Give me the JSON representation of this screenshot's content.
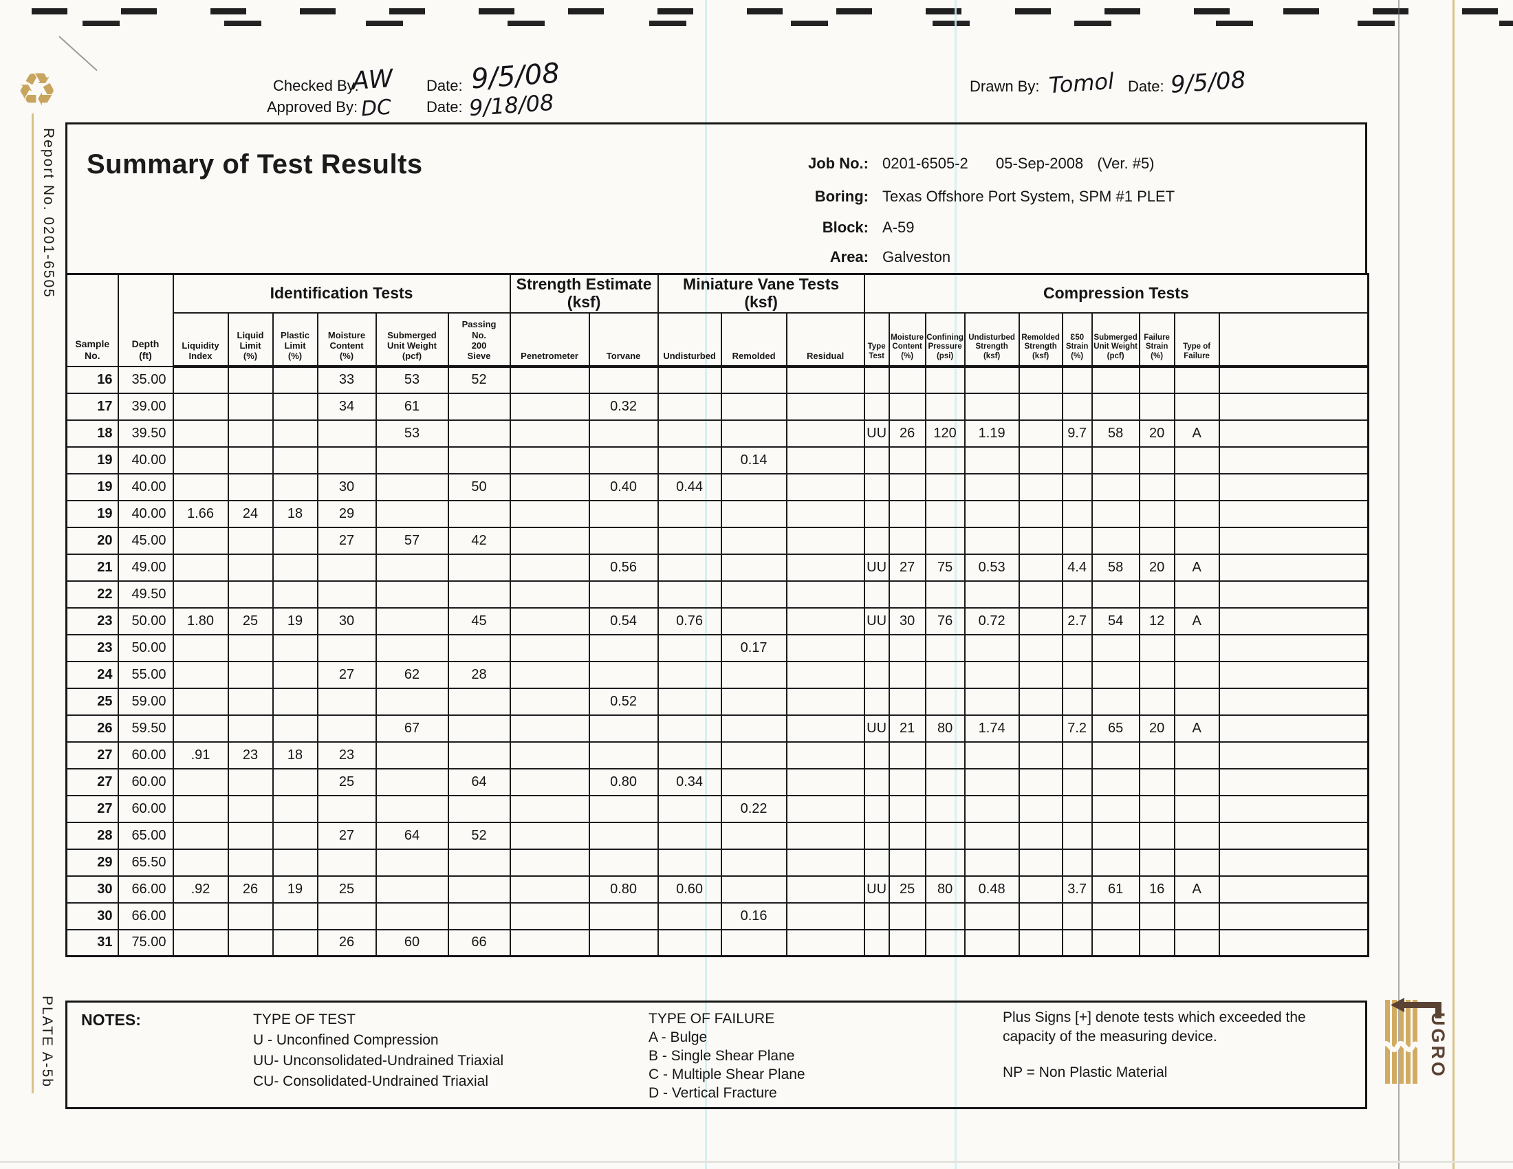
{
  "icons": {
    "recycle": "♻"
  },
  "colors": {
    "accent_gold": "#c7a55f",
    "logo_brown": "#5b4334",
    "scan_line_cyan": "#cdeef3"
  },
  "approval_header": {
    "checked_by_label": "Checked By:",
    "checked_by_value": "AW",
    "checked_date_label": "Date:",
    "checked_date_value": "9/5/08",
    "approved_by_label": "Approved  By:",
    "approved_by_value": "DC",
    "approved_date_label": "Date:",
    "approved_date_value": "9/18/08",
    "drawn_by_label": "Drawn By:",
    "drawn_by_value": "Tomol",
    "drawn_date_label": "Date:",
    "drawn_date_value": "9/5/08"
  },
  "title_block": {
    "title": "Summary of Test Results",
    "job_no_label": "Job No.:",
    "job_no": "0201-6505-2",
    "report_date": "05-Sep-2008",
    "version": "(Ver. #5)",
    "boring_label": "Boring:",
    "boring": "Texas Offshore Port System, SPM #1 PLET",
    "block_label": "Block:",
    "block": "A-59",
    "area_label": "Area:",
    "area": "Galveston"
  },
  "side_labels": {
    "report_no": "Report No. 0201-6505",
    "plate": "PLATE A-5b"
  },
  "logo": {
    "text": "UGRO"
  },
  "table": {
    "corner_columns": [
      "Sample\nNo.",
      "Depth\n(ft)"
    ],
    "group_labels": [
      "Identification Tests",
      "Strength Estimate\n(ksf)",
      "Miniature Vane Tests\n(ksf)",
      "Compression Tests"
    ],
    "sub_columns": [
      "Liquidity\nIndex",
      "Liquid\nLimit\n(%)",
      "Plastic\nLimit\n(%)",
      "Moisture\nContent\n(%)",
      "Submerged\nUnit Weight\n(pcf)",
      "Passing\nNo.\n200\nSieve",
      "Penetrometer",
      "Torvane",
      "Undisturbed",
      "Remolded",
      "Residual",
      "Type\nTest",
      "Moisture\nContent\n(%)",
      "Confining\nPressure\n(psi)",
      "Undisturbed\nStrength\n(ksf)",
      "Remolded\nStrength\n(ksf)",
      "Ɛ50\nStrain\n(%)",
      "Submerged\nUnit Weight\n(pcf)",
      "Failure\nStrain\n(%)",
      "Type of\nFailure"
    ],
    "rows": [
      [
        "16",
        "35.00",
        "",
        "",
        "",
        "33",
        "53",
        "52",
        "",
        "",
        "",
        "",
        "",
        "",
        "",
        "",
        "",
        "",
        "",
        "",
        "",
        ""
      ],
      [
        "17",
        "39.00",
        "",
        "",
        "",
        "34",
        "61",
        "",
        "",
        "0.32",
        "",
        "",
        "",
        "",
        "",
        "",
        "",
        "",
        "",
        "",
        "",
        ""
      ],
      [
        "18",
        "39.50",
        "",
        "",
        "",
        "",
        "53",
        "",
        "",
        "",
        "",
        "",
        "",
        "UU",
        "26",
        "120",
        "1.19",
        "",
        "9.7",
        "58",
        "20",
        "A"
      ],
      [
        "19",
        "40.00",
        "",
        "",
        "",
        "",
        "",
        "",
        "",
        "",
        "",
        "0.14",
        "",
        "",
        "",
        "",
        "",
        "",
        "",
        "",
        "",
        ""
      ],
      [
        "19",
        "40.00",
        "",
        "",
        "",
        "30",
        "",
        "50",
        "",
        "0.40",
        "0.44",
        "",
        "",
        "",
        "",
        "",
        "",
        "",
        "",
        "",
        "",
        ""
      ],
      [
        "19",
        "40.00",
        "1.66",
        "24",
        "18",
        "29",
        "",
        "",
        "",
        "",
        "",
        "",
        "",
        "",
        "",
        "",
        "",
        "",
        "",
        "",
        "",
        ""
      ],
      [
        "20",
        "45.00",
        "",
        "",
        "",
        "27",
        "57",
        "42",
        "",
        "",
        "",
        "",
        "",
        "",
        "",
        "",
        "",
        "",
        "",
        "",
        "",
        ""
      ],
      [
        "21",
        "49.00",
        "",
        "",
        "",
        "",
        "",
        "",
        "",
        "0.56",
        "",
        "",
        "",
        "UU",
        "27",
        "75",
        "0.53",
        "",
        "4.4",
        "58",
        "20",
        "A"
      ],
      [
        "22",
        "49.50",
        "",
        "",
        "",
        "",
        "",
        "",
        "",
        "",
        "",
        "",
        "",
        "",
        "",
        "",
        "",
        "",
        "",
        "",
        "",
        ""
      ],
      [
        "23",
        "50.00",
        "1.80",
        "25",
        "19",
        "30",
        "",
        "45",
        "",
        "0.54",
        "0.76",
        "",
        "",
        "UU",
        "30",
        "76",
        "0.72",
        "",
        "2.7",
        "54",
        "12",
        "A"
      ],
      [
        "23",
        "50.00",
        "",
        "",
        "",
        "",
        "",
        "",
        "",
        "",
        "",
        "0.17",
        "",
        "",
        "",
        "",
        "",
        "",
        "",
        "",
        "",
        ""
      ],
      [
        "24",
        "55.00",
        "",
        "",
        "",
        "27",
        "62",
        "28",
        "",
        "",
        "",
        "",
        "",
        "",
        "",
        "",
        "",
        "",
        "",
        "",
        "",
        ""
      ],
      [
        "25",
        "59.00",
        "",
        "",
        "",
        "",
        "",
        "",
        "",
        "0.52",
        "",
        "",
        "",
        "",
        "",
        "",
        "",
        "",
        "",
        "",
        "",
        ""
      ],
      [
        "26",
        "59.50",
        "",
        "",
        "",
        "",
        "67",
        "",
        "",
        "",
        "",
        "",
        "",
        "UU",
        "21",
        "80",
        "1.74",
        "",
        "7.2",
        "65",
        "20",
        "A"
      ],
      [
        "27",
        "60.00",
        ".91",
        "23",
        "18",
        "23",
        "",
        "",
        "",
        "",
        "",
        "",
        "",
        "",
        "",
        "",
        "",
        "",
        "",
        "",
        "",
        ""
      ],
      [
        "27",
        "60.00",
        "",
        "",
        "",
        "25",
        "",
        "64",
        "",
        "0.80",
        "0.34",
        "",
        "",
        "",
        "",
        "",
        "",
        "",
        "",
        "",
        "",
        ""
      ],
      [
        "27",
        "60.00",
        "",
        "",
        "",
        "",
        "",
        "",
        "",
        "",
        "",
        "0.22",
        "",
        "",
        "",
        "",
        "",
        "",
        "",
        "",
        "",
        ""
      ],
      [
        "28",
        "65.00",
        "",
        "",
        "",
        "27",
        "64",
        "52",
        "",
        "",
        "",
        "",
        "",
        "",
        "",
        "",
        "",
        "",
        "",
        "",
        "",
        ""
      ],
      [
        "29",
        "65.50",
        "",
        "",
        "",
        "",
        "",
        "",
        "",
        "",
        "",
        "",
        "",
        "",
        "",
        "",
        "",
        "",
        "",
        "",
        "",
        ""
      ],
      [
        "30",
        "66.00",
        ".92",
        "26",
        "19",
        "25",
        "",
        "",
        "",
        "0.80",
        "0.60",
        "",
        "",
        "UU",
        "25",
        "80",
        "0.48",
        "",
        "3.7",
        "61",
        "16",
        "A"
      ],
      [
        "30",
        "66.00",
        "",
        "",
        "",
        "",
        "",
        "",
        "",
        "",
        "",
        "0.16",
        "",
        "",
        "",
        "",
        "",
        "",
        "",
        "",
        "",
        ""
      ],
      [
        "31",
        "75.00",
        "",
        "",
        "",
        "26",
        "60",
        "66",
        "",
        "",
        "",
        "",
        "",
        "",
        "",
        "",
        "",
        "",
        "",
        "",
        "",
        ""
      ]
    ]
  },
  "notes": {
    "heading": "NOTES:",
    "type_of_test_heading": "TYPE OF TEST",
    "type_of_test_items": [
      "U  - Unconfined Compression",
      "UU- Unconsolidated-Undrained Triaxial",
      "CU- Consolidated-Undrained Triaxial"
    ],
    "type_of_failure_heading": "TYPE OF FAILURE",
    "type_of_failure_items": [
      "A - Bulge",
      "B - Single Shear Plane",
      "C - Multiple Shear Plane",
      "D - Vertical Fracture"
    ],
    "plus_sign_note": "Plus Signs [+] denote tests which exceeded the capacity of the measuring device.",
    "np_note": "NP = Non Plastic Material"
  }
}
